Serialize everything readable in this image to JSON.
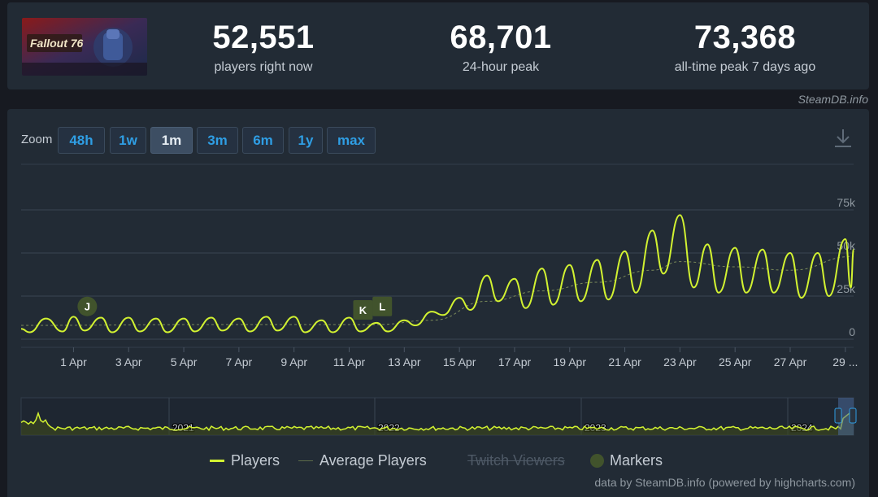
{
  "game": {
    "thumbnail_logo_text": "Fallout 76"
  },
  "stats": [
    {
      "value": "52,551",
      "label": "players right now"
    },
    {
      "value": "68,701",
      "label": "24-hour peak"
    },
    {
      "value": "73,368",
      "label": "all-time peak 7 days ago"
    }
  ],
  "credit_top": "SteamDB.info",
  "zoom": {
    "label": "Zoom",
    "buttons": [
      "48h",
      "1w",
      "1m",
      "3m",
      "6m",
      "1y",
      "max"
    ],
    "active": "1m"
  },
  "legend": {
    "players": "Players",
    "average": "Average Players",
    "twitch": "Twitch Viewers",
    "markers": "Markers"
  },
  "credit_bottom": "data by SteamDB.info (powered by highcharts.com)",
  "colors": {
    "players_line": "#d2f231",
    "average_line": "#7a8a5a",
    "marker_fill": "#41532c",
    "accent_button_text": "#2f9ee4",
    "panel_bg": "#222b35"
  },
  "chart_data": {
    "type": "line",
    "title": "",
    "xlabel": "",
    "ylabel": "",
    "x_tick_labels": [
      "1 Apr",
      "3 Apr",
      "5 Apr",
      "7 Apr",
      "9 Apr",
      "11 Apr",
      "13 Apr",
      "15 Apr",
      "17 Apr",
      "19 Apr",
      "21 Apr",
      "23 Apr",
      "25 Apr",
      "27 Apr",
      "29 ..."
    ],
    "x_range_days": [
      -1.9,
      28.3
    ],
    "y_ticks": [
      0,
      25000,
      50000,
      75000
    ],
    "y_tick_labels": [
      "0",
      "25k",
      "50k",
      "75k"
    ],
    "ylim": [
      0,
      75000
    ],
    "grid": true,
    "series": [
      {
        "name": "Players",
        "points": [
          [
            -1.9,
            6000
          ],
          [
            -1.6,
            4000
          ],
          [
            -1.0,
            12000
          ],
          [
            -0.4,
            4500
          ],
          [
            0.0,
            13000
          ],
          [
            0.4,
            5000
          ],
          [
            1.0,
            12500
          ],
          [
            1.4,
            4000
          ],
          [
            2.0,
            12500
          ],
          [
            2.4,
            4500
          ],
          [
            3.0,
            12000
          ],
          [
            3.4,
            4000
          ],
          [
            4.0,
            12000
          ],
          [
            4.4,
            4500
          ],
          [
            5.0,
            12500
          ],
          [
            5.4,
            5000
          ],
          [
            6.0,
            12000
          ],
          [
            6.4,
            4500
          ],
          [
            7.0,
            13000
          ],
          [
            7.4,
            5000
          ],
          [
            8.0,
            13000
          ],
          [
            8.4,
            4000
          ],
          [
            9.0,
            11000
          ],
          [
            9.4,
            4000
          ],
          [
            10.0,
            12500
          ],
          [
            10.4,
            4500
          ],
          [
            11.0,
            9500
          ],
          [
            11.4,
            4500
          ],
          [
            12.0,
            11000
          ],
          [
            12.4,
            8000
          ],
          [
            13.0,
            16000
          ],
          [
            13.4,
            14000
          ],
          [
            14.0,
            24000
          ],
          [
            14.4,
            17000
          ],
          [
            15.0,
            37000
          ],
          [
            15.4,
            22000
          ],
          [
            16.0,
            35000
          ],
          [
            16.4,
            18000
          ],
          [
            17.0,
            41000
          ],
          [
            17.4,
            20000
          ],
          [
            18.0,
            43000
          ],
          [
            18.4,
            22000
          ],
          [
            19.0,
            46000
          ],
          [
            19.4,
            23000
          ],
          [
            20.0,
            51000
          ],
          [
            20.4,
            27000
          ],
          [
            21.0,
            63000
          ],
          [
            21.4,
            38000
          ],
          [
            22.0,
            72000
          ],
          [
            22.5,
            30000
          ],
          [
            23.0,
            55000
          ],
          [
            23.4,
            27000
          ],
          [
            24.0,
            53000
          ],
          [
            24.4,
            27000
          ],
          [
            25.0,
            52000
          ],
          [
            25.4,
            27000
          ],
          [
            26.0,
            50000
          ],
          [
            26.4,
            24000
          ],
          [
            27.0,
            50000
          ],
          [
            27.4,
            25000
          ],
          [
            28.0,
            58000
          ],
          [
            28.2,
            30000
          ],
          [
            28.3,
            52000
          ]
        ]
      },
      {
        "name": "Average Players",
        "points": [
          [
            -1.9,
            8000
          ],
          [
            5.0,
            8500
          ],
          [
            11.0,
            8500
          ],
          [
            13.0,
            11000
          ],
          [
            15.0,
            22000
          ],
          [
            17.0,
            28000
          ],
          [
            19.0,
            33000
          ],
          [
            21.0,
            40000
          ],
          [
            22.0,
            45000
          ],
          [
            24.0,
            42000
          ],
          [
            26.0,
            40000
          ],
          [
            28.3,
            48000
          ]
        ]
      }
    ],
    "markers": [
      {
        "label": "J",
        "x": 0.5,
        "y": 19000
      },
      {
        "label": "K",
        "x": 10.5,
        "y": 17000
      },
      {
        "label": "L",
        "x": 11.2,
        "y": 19000
      }
    ],
    "navigator": {
      "x_tick_labels": [
        "2021",
        "2022",
        "2023",
        "2024"
      ]
    }
  }
}
